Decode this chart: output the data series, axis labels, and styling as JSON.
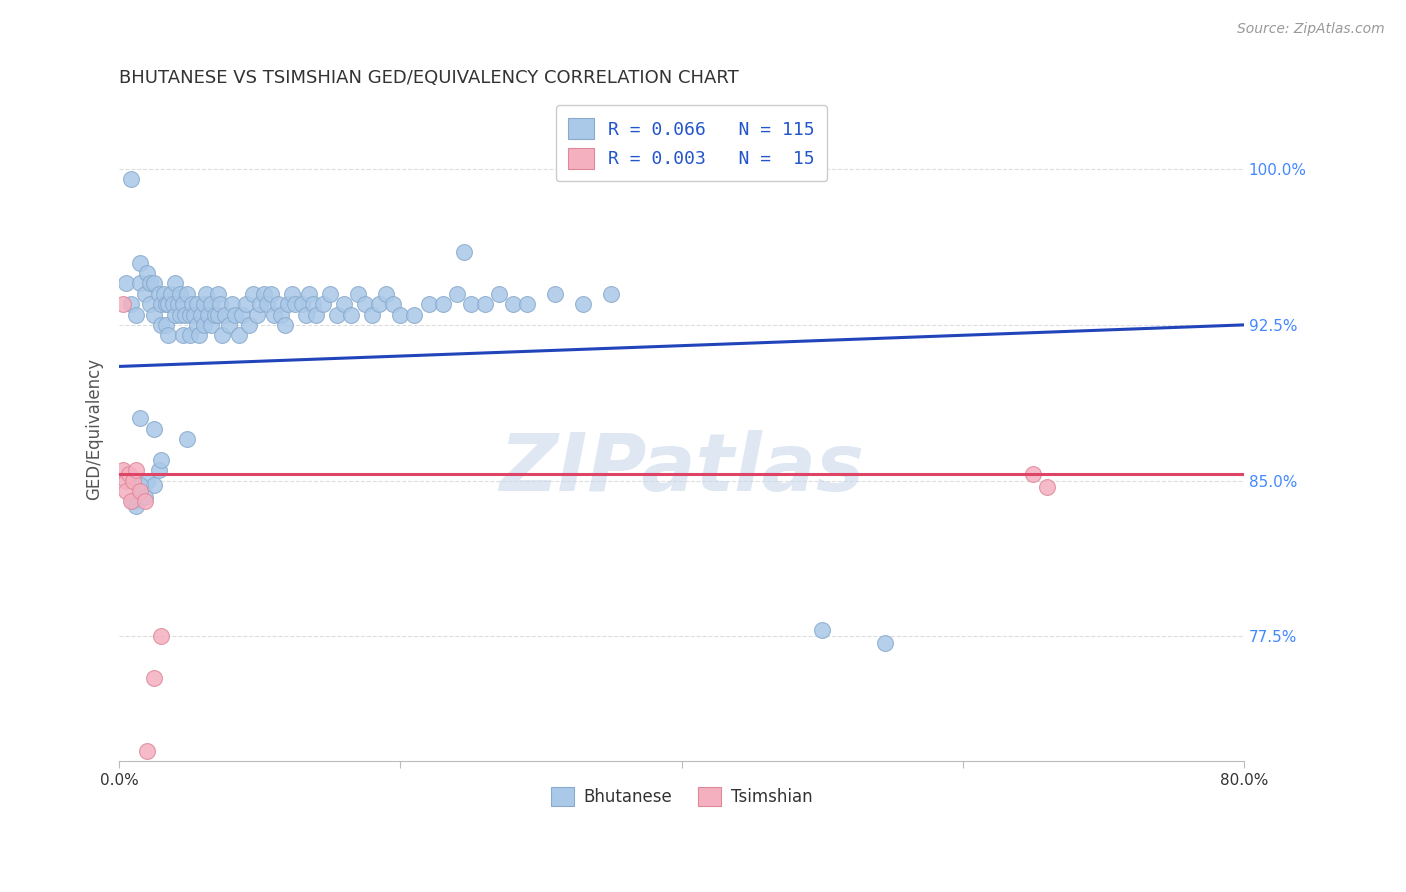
{
  "title": "BHUTANESE VS TSIMSHIAN GED/EQUIVALENCY CORRELATION CHART",
  "source": "Source: ZipAtlas.com",
  "ylabel": "GED/Equivalency",
  "ytick_labels": [
    "77.5%",
    "85.0%",
    "92.5%",
    "100.0%"
  ],
  "ytick_values": [
    0.775,
    0.85,
    0.925,
    1.0
  ],
  "xlim": [
    0.0,
    0.8
  ],
  "ylim": [
    0.715,
    1.035
  ],
  "blue_color": "#aac8e8",
  "pink_color": "#f5b0c0",
  "trend_blue_color": "#2244bb",
  "trend_pink_color": "#dd4466",
  "blue_edge_color": "#88aacc",
  "pink_edge_color": "#dd8899",
  "legend_text_color": "#2255cc",
  "right_label_color": "#4488ff",
  "title_color": "#333333",
  "watermark_color": "#c8d8ea",
  "background_color": "#ffffff",
  "grid_color": "#dddddd",
  "marker_size": 130,
  "blue_trend_x": [
    0.0,
    0.8
  ],
  "blue_trend_y": [
    0.905,
    0.925
  ],
  "pink_trend_x": [
    0.0,
    0.8
  ],
  "pink_trend_y": [
    0.853,
    0.853
  ],
  "bhutanese_x": [
    0.005,
    0.008,
    0.012,
    0.015,
    0.015,
    0.018,
    0.02,
    0.022,
    0.022,
    0.025,
    0.025,
    0.028,
    0.03,
    0.03,
    0.032,
    0.033,
    0.033,
    0.035,
    0.035,
    0.037,
    0.038,
    0.04,
    0.04,
    0.042,
    0.043,
    0.043,
    0.045,
    0.045,
    0.047,
    0.048,
    0.05,
    0.05,
    0.052,
    0.053,
    0.055,
    0.055,
    0.057,
    0.058,
    0.06,
    0.06,
    0.062,
    0.063,
    0.065,
    0.065,
    0.068,
    0.07,
    0.07,
    0.072,
    0.073,
    0.075,
    0.078,
    0.08,
    0.082,
    0.085,
    0.087,
    0.09,
    0.092,
    0.095,
    0.098,
    0.1,
    0.103,
    0.105,
    0.108,
    0.11,
    0.113,
    0.115,
    0.118,
    0.12,
    0.123,
    0.125,
    0.13,
    0.133,
    0.135,
    0.138,
    0.14,
    0.145,
    0.15,
    0.155,
    0.16,
    0.165,
    0.17,
    0.175,
    0.18,
    0.185,
    0.19,
    0.195,
    0.2,
    0.21,
    0.22,
    0.23,
    0.24,
    0.25,
    0.26,
    0.27,
    0.28,
    0.29,
    0.31,
    0.33,
    0.35,
    0.028,
    0.03,
    0.008,
    0.245,
    0.048,
    0.015,
    0.025,
    0.5,
    0.545,
    0.01,
    0.02,
    0.025,
    0.01,
    0.012,
    0.015,
    0.018
  ],
  "bhutanese_y": [
    0.945,
    0.935,
    0.93,
    0.955,
    0.945,
    0.94,
    0.95,
    0.945,
    0.935,
    0.945,
    0.93,
    0.94,
    0.935,
    0.925,
    0.94,
    0.935,
    0.925,
    0.935,
    0.92,
    0.94,
    0.935,
    0.93,
    0.945,
    0.935,
    0.94,
    0.93,
    0.935,
    0.92,
    0.93,
    0.94,
    0.93,
    0.92,
    0.935,
    0.93,
    0.925,
    0.935,
    0.92,
    0.93,
    0.925,
    0.935,
    0.94,
    0.93,
    0.925,
    0.935,
    0.93,
    0.94,
    0.93,
    0.935,
    0.92,
    0.93,
    0.925,
    0.935,
    0.93,
    0.92,
    0.93,
    0.935,
    0.925,
    0.94,
    0.93,
    0.935,
    0.94,
    0.935,
    0.94,
    0.93,
    0.935,
    0.93,
    0.925,
    0.935,
    0.94,
    0.935,
    0.935,
    0.93,
    0.94,
    0.935,
    0.93,
    0.935,
    0.94,
    0.93,
    0.935,
    0.93,
    0.94,
    0.935,
    0.93,
    0.935,
    0.94,
    0.935,
    0.93,
    0.93,
    0.935,
    0.935,
    0.94,
    0.935,
    0.935,
    0.94,
    0.935,
    0.935,
    0.94,
    0.935,
    0.94,
    0.855,
    0.86,
    0.995,
    0.96,
    0.87,
    0.88,
    0.875,
    0.778,
    0.772,
    0.85,
    0.85,
    0.848,
    0.84,
    0.838,
    0.848,
    0.842
  ],
  "tsimshian_x": [
    0.003,
    0.003,
    0.005,
    0.005,
    0.007,
    0.008,
    0.01,
    0.012,
    0.015,
    0.018,
    0.02,
    0.025,
    0.03,
    0.65,
    0.66
  ],
  "tsimshian_y": [
    0.935,
    0.855,
    0.85,
    0.845,
    0.853,
    0.84,
    0.85,
    0.855,
    0.845,
    0.84,
    0.72,
    0.755,
    0.775,
    0.853,
    0.847
  ]
}
